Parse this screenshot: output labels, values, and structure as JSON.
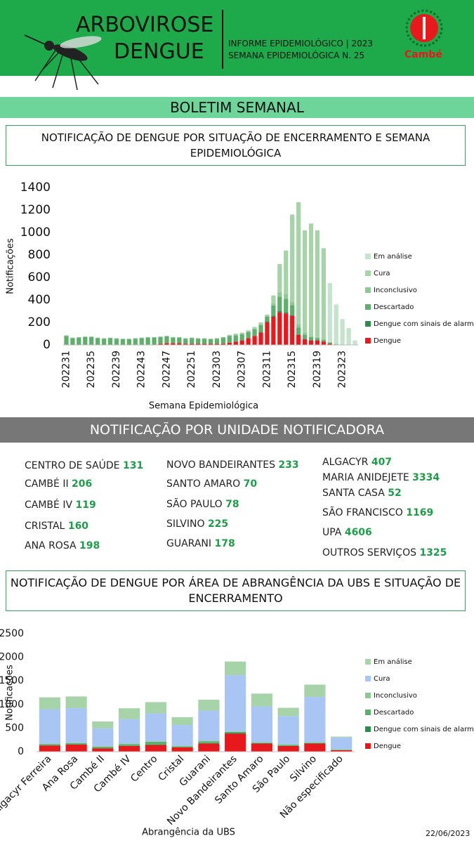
{
  "header": {
    "title_line1": "ARBOVIROSE",
    "title_line2": "DENGUE",
    "info_line1": "INFORME EPIDEMIOLÓGICO | 2023",
    "info_line2": "SEMANA EPIDEMIOLÓGICA  N. 25",
    "logo": "Cambé"
  },
  "banner": "BOLETIM SEMANAL",
  "units": {
    "title": "NOTIFICAÇÃO POR UNIDADE NOTIFICADORA",
    "columns": [
      [
        {
          "name": "CENTRO  DE SAÚDE",
          "value": 131
        },
        {
          "name": "CAMBÉ II",
          "value": 206
        },
        {
          "name": "CAMBÉ IV",
          "value": 119
        },
        {
          "name": "CRISTAL",
          "value": 160
        },
        {
          "name": "ANA ROSA",
          "value": 198
        }
      ],
      [
        {
          "name": "NOVO BANDEIRANTES",
          "value": 233
        },
        {
          "name": "SANTO AMARO",
          "value": 70
        },
        {
          "name": "SÃO PAULO",
          "value": 78
        },
        {
          "name": "SILVINO",
          "value": 225
        },
        {
          "name": "GUARANI",
          "value": 178
        }
      ],
      [
        {
          "name": "ALGACYR",
          "value": 407
        },
        {
          "name": "MARIA ANIDEJETE",
          "value": 3334
        },
        {
          "name": "SANTA CASA",
          "value": 52
        },
        {
          "name": "SÃO FRANCISCO",
          "value": 1169
        },
        {
          "name": "UPA",
          "value": 4606
        },
        {
          "name": "OUTROS SERVIÇOS",
          "value": 1325
        }
      ]
    ]
  },
  "date": "22/06/2023",
  "chart_data": [
    {
      "type": "stacked_bar",
      "title": "NOTIFICAÇÃO DE DENGUE POR SITUAÇÃO DE ENCERRAMENTO E SEMANA EPIDEMIOLÓGICA",
      "x_label": "Semana Epidemiológica",
      "y_label": "Notificações",
      "categories": [
        "202231",
        null,
        null,
        null,
        "202235",
        null,
        null,
        null,
        "202239",
        null,
        null,
        null,
        "202243",
        null,
        null,
        null,
        "202247",
        null,
        null,
        null,
        "202251",
        null,
        null,
        null,
        "202303",
        null,
        null,
        null,
        "202307",
        null,
        null,
        null,
        "202311",
        null,
        null,
        null,
        "202315",
        null,
        null,
        null,
        "202319",
        null,
        null,
        null,
        "202323",
        null,
        null
      ],
      "ylim": [
        0,
        1400
      ],
      "yticks": [
        0,
        200,
        400,
        600,
        800,
        1000,
        1200,
        1400
      ],
      "series": [
        {
          "name": "Dengue",
          "color": "#e8191c",
          "values": [
            0,
            0,
            0,
            0,
            0,
            0,
            0,
            0,
            0,
            0,
            0,
            0,
            0,
            0,
            0,
            10,
            15,
            15,
            15,
            10,
            10,
            10,
            10,
            10,
            10,
            10,
            20,
            30,
            40,
            60,
            80,
            110,
            200,
            250,
            290,
            280,
            260,
            90,
            50,
            40,
            40,
            30,
            10,
            0,
            0,
            0,
            0
          ]
        },
        {
          "name": "Dengue com sinais de alarme",
          "color": "#2e8b4e",
          "values": [
            0,
            0,
            0,
            0,
            0,
            0,
            0,
            0,
            0,
            0,
            0,
            0,
            0,
            0,
            0,
            0,
            0,
            0,
            0,
            0,
            0,
            0,
            0,
            0,
            0,
            0,
            0,
            0,
            0,
            0,
            0,
            5,
            10,
            10,
            10,
            10,
            5,
            5,
            0,
            0,
            0,
            0,
            0,
            0,
            0,
            0,
            0
          ]
        },
        {
          "name": "Descartado",
          "color": "#5fae6b",
          "values": [
            80,
            60,
            65,
            70,
            70,
            60,
            55,
            60,
            55,
            50,
            50,
            55,
            60,
            65,
            65,
            60,
            60,
            50,
            50,
            45,
            50,
            45,
            45,
            40,
            45,
            55,
            60,
            55,
            55,
            55,
            60,
            60,
            40,
            90,
            130,
            120,
            90,
            60,
            40,
            30,
            20,
            15,
            10,
            5,
            0,
            0,
            0
          ]
        },
        {
          "name": "Inconclusivo",
          "color": "#8ec995",
          "values": [
            5,
            5,
            5,
            5,
            5,
            5,
            5,
            5,
            5,
            5,
            5,
            5,
            5,
            5,
            5,
            5,
            5,
            5,
            5,
            5,
            5,
            5,
            5,
            5,
            5,
            5,
            5,
            5,
            5,
            5,
            5,
            10,
            10,
            20,
            40,
            40,
            30,
            30,
            20,
            10,
            10,
            10,
            5,
            5,
            0,
            0,
            0
          ]
        },
        {
          "name": "Cura",
          "color": "#a6d3a8",
          "values": [
            0,
            0,
            0,
            0,
            0,
            0,
            0,
            0,
            0,
            0,
            0,
            0,
            0,
            0,
            0,
            0,
            0,
            0,
            0,
            0,
            0,
            0,
            0,
            0,
            0,
            0,
            5,
            10,
            10,
            10,
            15,
            15,
            10,
            70,
            250,
            390,
            775,
            1085,
            910,
            1000,
            950,
            805,
            0,
            0,
            0,
            0,
            0
          ]
        },
        {
          "name": "Em análise",
          "color": "#c5e3cd",
          "values": [
            0,
            0,
            0,
            0,
            0,
            0,
            0,
            0,
            0,
            0,
            0,
            0,
            0,
            0,
            0,
            0,
            0,
            0,
            0,
            0,
            0,
            0,
            0,
            0,
            0,
            0,
            0,
            0,
            0,
            0,
            0,
            0,
            0,
            0,
            0,
            0,
            0,
            0,
            0,
            0,
            0,
            0,
            525,
            350,
            230,
            150,
            40
          ]
        }
      ]
    },
    {
      "type": "stacked_bar",
      "title": "NOTIFICAÇÃO DE DENGUE POR ÁREA DE ABRANGÊNCIA DA UBS E SITUAÇÃO DE ENCERRAMENTO",
      "x_label": "Abrangência da UBS",
      "y_label": "Notificações",
      "categories": [
        "Algacyr Ferreira",
        "Ana Rosa",
        "Cambé II",
        "Cambé IV",
        "Centro",
        "Cristal",
        "Guarani",
        "Novo Bandeirantes",
        "Santo Amaro",
        "São Paulo",
        "Silvino",
        "Não especificado"
      ],
      "ylim": [
        0,
        2500
      ],
      "yticks": [
        0,
        500,
        1000,
        1500,
        2000,
        2500
      ],
      "series": [
        {
          "name": "Dengue",
          "color": "#e8191c",
          "values": [
            130,
            150,
            70,
            120,
            140,
            90,
            170,
            380,
            170,
            120,
            170,
            30
          ]
        },
        {
          "name": "Dengue com sinais de alarme",
          "color": "#2e8b4e",
          "values": [
            10,
            10,
            5,
            10,
            10,
            5,
            10,
            20,
            10,
            5,
            10,
            0
          ]
        },
        {
          "name": "Descartado",
          "color": "#5fae6b",
          "values": [
            20,
            20,
            30,
            30,
            60,
            20,
            40,
            20,
            10,
            20,
            10,
            10
          ]
        },
        {
          "name": "Inconclusivo",
          "color": "#8ec995",
          "values": [
            10,
            10,
            10,
            10,
            10,
            10,
            10,
            10,
            10,
            10,
            10,
            10
          ]
        },
        {
          "name": "Cura",
          "color": "#a9c5f4",
          "values": [
            730,
            730,
            380,
            520,
            590,
            440,
            640,
            1190,
            760,
            600,
            960,
            250
          ]
        },
        {
          "name": "Em análise",
          "color": "#a6d3a8",
          "values": [
            250,
            250,
            145,
            230,
            240,
            165,
            230,
            290,
            270,
            175,
            260,
            20
          ]
        }
      ]
    }
  ]
}
